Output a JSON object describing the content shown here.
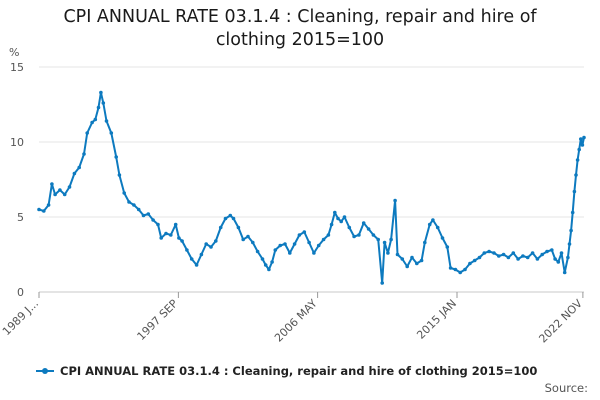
{
  "chart_data": {
    "type": "line",
    "title": "CPI ANNUAL RATE 03.1.4 : Cleaning, repair and hire of clothing 2015=100",
    "title_lines": [
      "CPI ANNUAL RATE 03.1.4 : Cleaning, repair and hire of",
      "clothing 2015=100"
    ],
    "ylabel": "%",
    "ylim": [
      0,
      15
    ],
    "yticks": [
      0,
      5,
      10,
      15
    ],
    "xlim": [
      1989.0,
      2022.9
    ],
    "xticks": [
      {
        "label": "1989 J...",
        "x": 1989.0
      },
      {
        "label": "1997 SEP",
        "x": 1997.67
      },
      {
        "label": "2006 MAY",
        "x": 2006.33
      },
      {
        "label": "2015 JAN",
        "x": 2015.0
      },
      {
        "label": "2022 NOV",
        "x": 2022.83
      }
    ],
    "grid": true,
    "legend_position": "bottom",
    "series": [
      {
        "name": "CPI ANNUAL RATE 03.1.4 : Cleaning, repair and hire of clothing 2015=100",
        "color": "#0d7abf",
        "points": [
          [
            1989.0,
            5.5
          ],
          [
            1989.3,
            5.4
          ],
          [
            1989.6,
            5.8
          ],
          [
            1989.8,
            7.2
          ],
          [
            1990.0,
            6.5
          ],
          [
            1990.3,
            6.8
          ],
          [
            1990.6,
            6.5
          ],
          [
            1990.9,
            7.0
          ],
          [
            1991.2,
            7.9
          ],
          [
            1991.5,
            8.3
          ],
          [
            1991.8,
            9.2
          ],
          [
            1992.0,
            10.6
          ],
          [
            1992.3,
            11.3
          ],
          [
            1992.5,
            11.5
          ],
          [
            1992.7,
            12.3
          ],
          [
            1992.85,
            13.3
          ],
          [
            1993.0,
            12.6
          ],
          [
            1993.2,
            11.4
          ],
          [
            1993.5,
            10.6
          ],
          [
            1993.8,
            9.0
          ],
          [
            1994.0,
            7.8
          ],
          [
            1994.3,
            6.6
          ],
          [
            1994.6,
            6.0
          ],
          [
            1994.9,
            5.8
          ],
          [
            1995.2,
            5.5
          ],
          [
            1995.5,
            5.1
          ],
          [
            1995.8,
            5.2
          ],
          [
            1996.1,
            4.8
          ],
          [
            1996.4,
            4.5
          ],
          [
            1996.6,
            3.6
          ],
          [
            1996.9,
            3.9
          ],
          [
            1997.2,
            3.8
          ],
          [
            1997.5,
            4.5
          ],
          [
            1997.7,
            3.6
          ],
          [
            1997.9,
            3.4
          ],
          [
            1998.2,
            2.8
          ],
          [
            1998.5,
            2.2
          ],
          [
            1998.8,
            1.8
          ],
          [
            1999.1,
            2.5
          ],
          [
            1999.4,
            3.2
          ],
          [
            1999.7,
            3.0
          ],
          [
            2000.0,
            3.4
          ],
          [
            2000.3,
            4.3
          ],
          [
            2000.6,
            4.9
          ],
          [
            2000.9,
            5.1
          ],
          [
            2001.1,
            4.9
          ],
          [
            2001.4,
            4.3
          ],
          [
            2001.7,
            3.5
          ],
          [
            2002.0,
            3.7
          ],
          [
            2002.3,
            3.3
          ],
          [
            2002.6,
            2.7
          ],
          [
            2002.9,
            2.2
          ],
          [
            2003.1,
            1.8
          ],
          [
            2003.3,
            1.5
          ],
          [
            2003.5,
            2.0
          ],
          [
            2003.7,
            2.8
          ],
          [
            2004.0,
            3.1
          ],
          [
            2004.3,
            3.2
          ],
          [
            2004.6,
            2.6
          ],
          [
            2004.9,
            3.2
          ],
          [
            2005.2,
            3.8
          ],
          [
            2005.5,
            4.0
          ],
          [
            2005.8,
            3.3
          ],
          [
            2006.1,
            2.6
          ],
          [
            2006.4,
            3.1
          ],
          [
            2006.7,
            3.5
          ],
          [
            2007.0,
            3.8
          ],
          [
            2007.2,
            4.5
          ],
          [
            2007.4,
            5.3
          ],
          [
            2007.6,
            4.9
          ],
          [
            2007.8,
            4.7
          ],
          [
            2008.0,
            5.0
          ],
          [
            2008.3,
            4.3
          ],
          [
            2008.6,
            3.7
          ],
          [
            2008.9,
            3.8
          ],
          [
            2009.2,
            4.6
          ],
          [
            2009.5,
            4.2
          ],
          [
            2009.8,
            3.8
          ],
          [
            2010.1,
            3.5
          ],
          [
            2010.35,
            0.6
          ],
          [
            2010.5,
            3.3
          ],
          [
            2010.7,
            2.6
          ],
          [
            2010.9,
            3.5
          ],
          [
            2011.15,
            6.1
          ],
          [
            2011.3,
            2.5
          ],
          [
            2011.6,
            2.2
          ],
          [
            2011.9,
            1.7
          ],
          [
            2012.2,
            2.3
          ],
          [
            2012.5,
            1.9
          ],
          [
            2012.8,
            2.1
          ],
          [
            2013.0,
            3.3
          ],
          [
            2013.3,
            4.5
          ],
          [
            2013.5,
            4.8
          ],
          [
            2013.8,
            4.3
          ],
          [
            2014.1,
            3.6
          ],
          [
            2014.4,
            3.0
          ],
          [
            2014.6,
            1.6
          ],
          [
            2014.9,
            1.5
          ],
          [
            2015.2,
            1.3
          ],
          [
            2015.5,
            1.5
          ],
          [
            2015.8,
            1.9
          ],
          [
            2016.1,
            2.1
          ],
          [
            2016.4,
            2.3
          ],
          [
            2016.7,
            2.6
          ],
          [
            2017.0,
            2.7
          ],
          [
            2017.3,
            2.6
          ],
          [
            2017.6,
            2.4
          ],
          [
            2017.9,
            2.5
          ],
          [
            2018.2,
            2.3
          ],
          [
            2018.5,
            2.6
          ],
          [
            2018.8,
            2.2
          ],
          [
            2019.1,
            2.4
          ],
          [
            2019.4,
            2.3
          ],
          [
            2019.7,
            2.6
          ],
          [
            2020.0,
            2.2
          ],
          [
            2020.3,
            2.5
          ],
          [
            2020.6,
            2.7
          ],
          [
            2020.9,
            2.8
          ],
          [
            2021.1,
            2.2
          ],
          [
            2021.3,
            2.0
          ],
          [
            2021.5,
            2.6
          ],
          [
            2021.7,
            1.3
          ],
          [
            2021.9,
            2.3
          ],
          [
            2022.0,
            3.2
          ],
          [
            2022.1,
            4.1
          ],
          [
            2022.2,
            5.3
          ],
          [
            2022.3,
            6.7
          ],
          [
            2022.4,
            7.8
          ],
          [
            2022.5,
            8.8
          ],
          [
            2022.6,
            9.5
          ],
          [
            2022.7,
            10.2
          ],
          [
            2022.8,
            9.8
          ],
          [
            2022.9,
            10.3
          ]
        ]
      }
    ]
  },
  "legend_label": "CPI ANNUAL RATE 03.1.4 : Cleaning, repair and hire of clothing 2015=100",
  "source_label": "Source:"
}
